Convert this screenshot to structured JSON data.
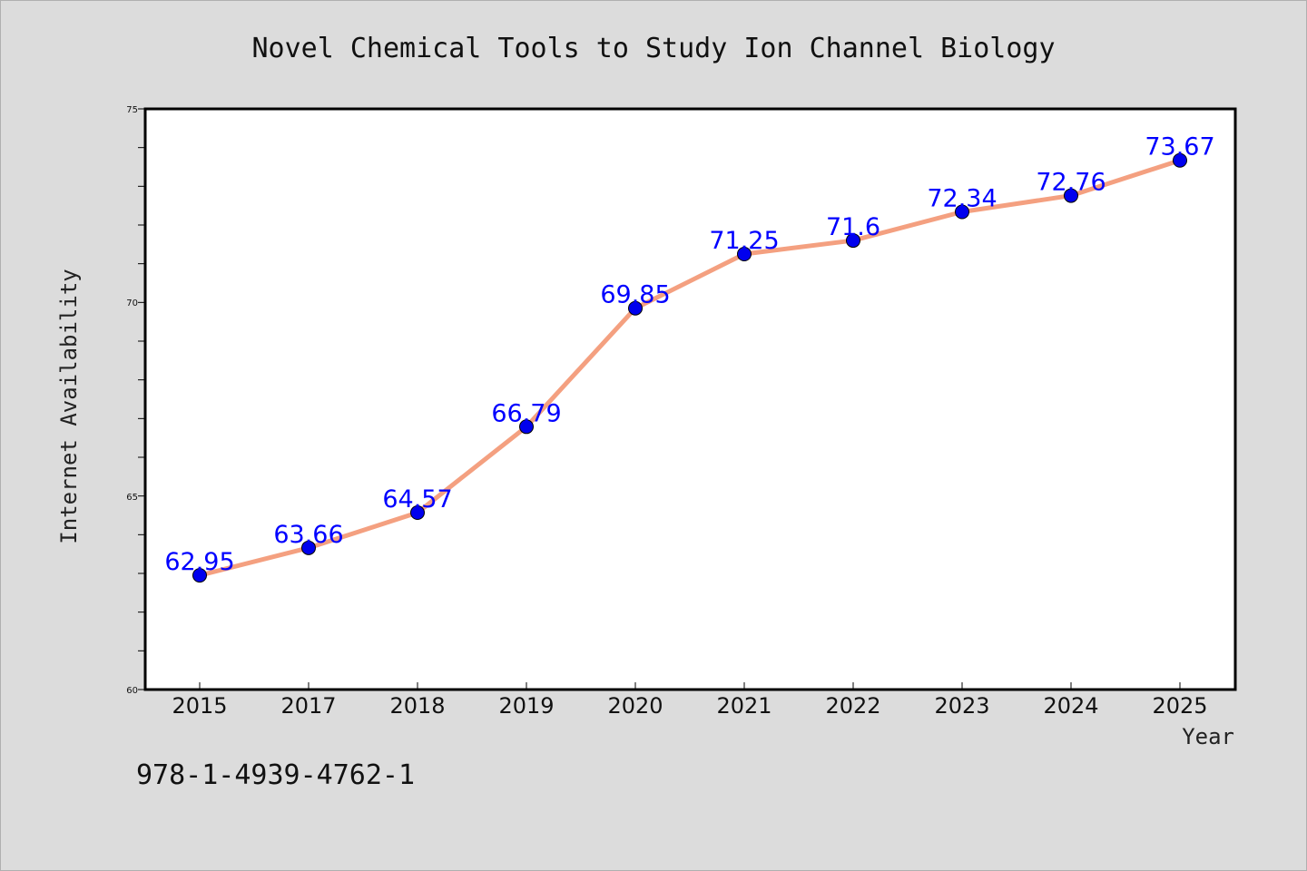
{
  "chart_data": {
    "type": "line",
    "title": "Novel Chemical Tools to Study Ion Channel Biology",
    "xlabel": "Year",
    "ylabel": "Internet Availability",
    "categories": [
      "2015",
      "2017",
      "2018",
      "2019",
      "2020",
      "2021",
      "2022",
      "2023",
      "2024",
      "2025"
    ],
    "series": [
      {
        "values": [
          62.95,
          63.66,
          64.57,
          66.79,
          69.85,
          71.25,
          71.6,
          72.34,
          72.76,
          73.67
        ],
        "labels": [
          "62.95",
          "63.66",
          "64.57",
          "66.79",
          "69.85",
          "71.25",
          "71.6",
          "72.34",
          "72.76",
          "73.67"
        ],
        "line_color": "#f4a080",
        "marker_color": "#0000ee"
      }
    ],
    "ylim": [
      60,
      75
    ],
    "y_ticks": [
      "60",
      "65",
      "70",
      "75"
    ],
    "grid": false,
    "legend": "none"
  },
  "footer": {
    "isbn": "978-1-4939-4762-1"
  },
  "colors": {
    "background": "#dcdcdc",
    "plot_background": "#ffffff",
    "label_color": "#0000ff"
  }
}
